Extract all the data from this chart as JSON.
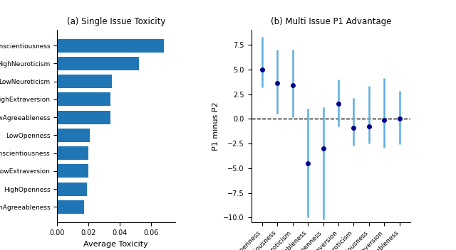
{
  "bar_categories": [
    "LowConscientiousness",
    "HighNeuroticism",
    "LowNeuroticism",
    "HighExtraversion",
    "LowAgreeableness",
    "LowOpenness",
    "HighConscientiousness",
    "LowExtraversion",
    "HighOpenness",
    "HighAgreeableness"
  ],
  "bar_values": [
    0.068,
    0.052,
    0.035,
    0.034,
    0.034,
    0.021,
    0.02,
    0.02,
    0.019,
    0.017
  ],
  "bar_color": "#2076b4",
  "bar_xlabel": "Average Toxicity",
  "bar_title": "(a) Single Issue Toxicity",
  "scatter_categories": [
    "HighOpenness",
    "HighConscientiousness",
    "HighNeuroticism",
    "LowAgreeableness",
    "LowOpenness",
    "LowExtraversion",
    "LowNeuroticism",
    "LowConscientiousness",
    "HighExtraversion",
    "HighAgreeableness"
  ],
  "scatter_means": [
    5.0,
    3.6,
    3.4,
    -4.5,
    -3.0,
    1.5,
    -0.9,
    -0.8,
    -0.1,
    0.05
  ],
  "scatter_err_low": [
    1.8,
    3.1,
    3.2,
    5.5,
    7.2,
    2.3,
    1.8,
    1.7,
    2.8,
    2.6
  ],
  "scatter_err_high": [
    3.3,
    3.4,
    3.6,
    5.5,
    4.2,
    2.5,
    3.0,
    4.1,
    4.2,
    2.8
  ],
  "scatter_dot_color": "#00008b",
  "scatter_line_color": "#5aafe0",
  "scatter_ylabel": "P1 minus P2",
  "scatter_title": "(b) Multi Issue P1 Advantage",
  "scatter_ylim": [
    -10.5,
    9.0
  ],
  "scatter_yticks": [
    -10.0,
    -7.5,
    -5.0,
    -2.5,
    0.0,
    2.5,
    5.0,
    7.5
  ]
}
